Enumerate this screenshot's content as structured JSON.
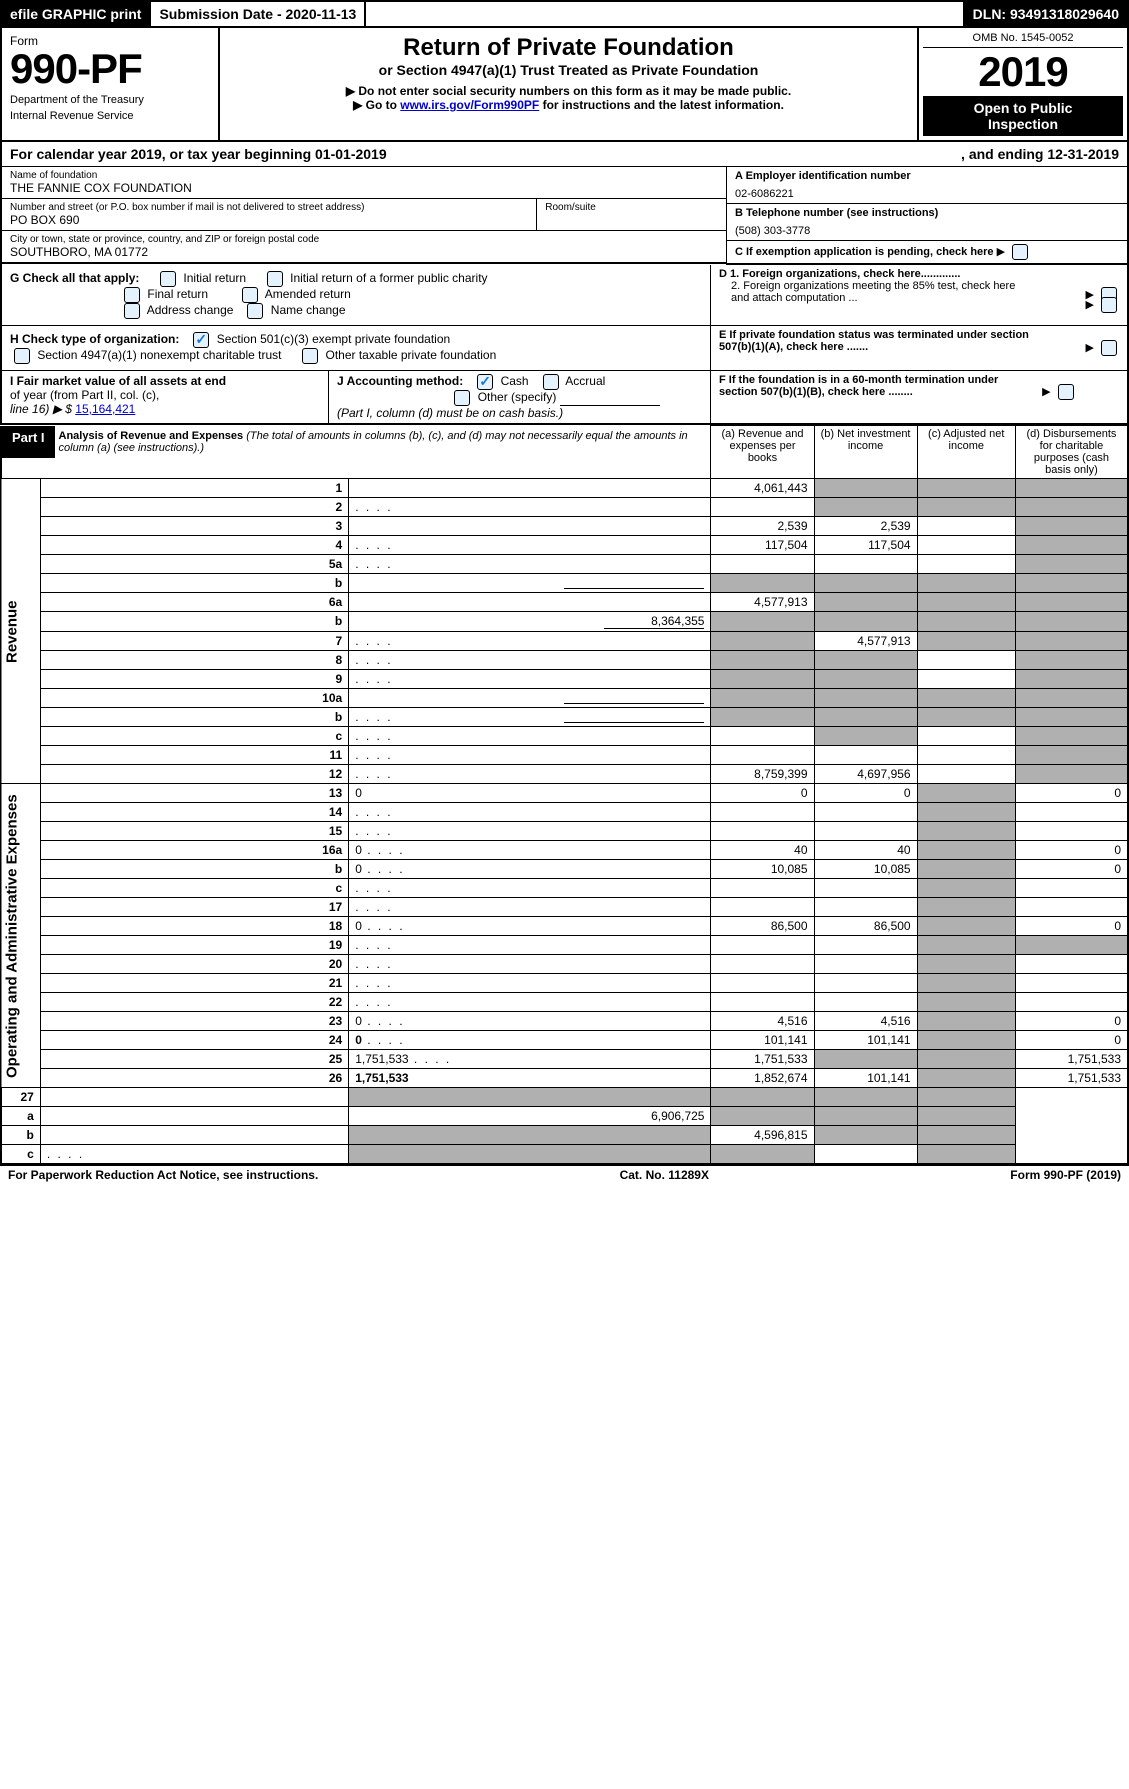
{
  "topbar": {
    "efile": "efile GRAPHIC print",
    "submission_label": "Submission Date - 2020-11-13",
    "dln": "DLN: 93491318029640"
  },
  "header": {
    "form_label": "Form",
    "form_number": "990-PF",
    "dept1": "Department of the Treasury",
    "dept2": "Internal Revenue Service",
    "title": "Return of Private Foundation",
    "subtitle": "or Section 4947(a)(1) Trust Treated as Private Foundation",
    "instr1": "▶ Do not enter social security numbers on this form as it may be made public.",
    "instr2_pre": "▶ Go to ",
    "instr2_link": "www.irs.gov/Form990PF",
    "instr2_post": " for instructions and the latest information.",
    "omb": "OMB No. 1545-0052",
    "year": "2019",
    "open1": "Open to Public",
    "open2": "Inspection"
  },
  "calyear": {
    "left": "For calendar year 2019, or tax year beginning 01-01-2019",
    "right": ", and ending 12-31-2019"
  },
  "meta": {
    "name_label": "Name of foundation",
    "name": "THE FANNIE COX FOUNDATION",
    "addr_label": "Number and street (or P.O. box number if mail is not delivered to street address)",
    "addr": "PO BOX 690",
    "room_label": "Room/suite",
    "city_label": "City or town, state or province, country, and ZIP or foreign postal code",
    "city": "SOUTHBORO, MA  01772",
    "a_label": "A Employer identification number",
    "ein": "02-6086221",
    "b_label": "B Telephone number (see instructions)",
    "phone": "(508) 303-3778",
    "c_label": "C If exemption application is pending, check here",
    "d1_label": "D 1. Foreign organizations, check here.............",
    "d2_label": "2. Foreign organizations meeting the 85% test, check here and attach computation ...",
    "e_label": "E If private foundation status was terminated under section 507(b)(1)(A), check here .......",
    "f_label": "F If the foundation is in a 60-month termination under section 507(b)(1)(B), check here ........"
  },
  "g": {
    "label": "G Check all that apply:",
    "opt1": "Initial return",
    "opt2": "Initial return of a former public charity",
    "opt3": "Final return",
    "opt4": "Amended return",
    "opt5": "Address change",
    "opt6": "Name change"
  },
  "h": {
    "label": "H Check type of organization:",
    "opt1": "Section 501(c)(3) exempt private foundation",
    "opt2": "Section 4947(a)(1) nonexempt charitable trust",
    "opt3": "Other taxable private foundation"
  },
  "i": {
    "label1": "I Fair market value of all assets at end",
    "label2": "of year (from Part II, col. (c),",
    "label3": "line 16) ▶ $",
    "value": "15,164,421"
  },
  "j": {
    "label": "J Accounting method:",
    "cash": "Cash",
    "accrual": "Accrual",
    "other": "Other (specify)",
    "note": "(Part I, column (d) must be on cash basis.)"
  },
  "part1": {
    "label": "Part I",
    "analysis_title": "Analysis of Revenue and Expenses",
    "analysis_note": "(The total of amounts in columns (b), (c), and (d) may not necessarily equal the amounts in column (a) (see instructions).)",
    "col_a": "(a)   Revenue and expenses per books",
    "col_b": "(b)  Net investment income",
    "col_c": "(c)  Adjusted net income",
    "col_d": "(d)  Disbursements for charitable purposes (cash basis only)"
  },
  "sections": {
    "revenue": "Revenue",
    "expenses": "Operating and Administrative Expenses"
  },
  "rows": [
    {
      "n": "1",
      "d": "",
      "a": "4,061,443",
      "b": "",
      "c": "",
      "b_shade": true,
      "c_shade": true,
      "d_shade": true
    },
    {
      "n": "2",
      "d": "",
      "a": "",
      "b": "",
      "c": "",
      "b_shade": true,
      "c_shade": true,
      "d_shade": true,
      "dots": true
    },
    {
      "n": "3",
      "d": "",
      "a": "2,539",
      "b": "2,539",
      "c": "",
      "d_shade": true
    },
    {
      "n": "4",
      "d": "",
      "a": "117,504",
      "b": "117,504",
      "c": "",
      "d_shade": true,
      "dots": true
    },
    {
      "n": "5a",
      "d": "",
      "a": "",
      "b": "",
      "c": "",
      "d_shade": true,
      "dots": true
    },
    {
      "n": "b",
      "d": "",
      "a": "",
      "b": "",
      "c": "",
      "a_shade": true,
      "b_shade": true,
      "c_shade": true,
      "d_shade": true,
      "inline_blank": true
    },
    {
      "n": "6a",
      "d": "",
      "a": "4,577,913",
      "b": "",
      "c": "",
      "b_shade": true,
      "c_shade": true,
      "d_shade": true
    },
    {
      "n": "b",
      "d": "",
      "a": "",
      "b": "",
      "c": "",
      "a_shade": true,
      "b_shade": true,
      "c_shade": true,
      "d_shade": true,
      "inline_val": "8,364,355"
    },
    {
      "n": "7",
      "d": "",
      "a": "",
      "b": "4,577,913",
      "c": "",
      "a_shade": true,
      "c_shade": true,
      "d_shade": true,
      "dots": true
    },
    {
      "n": "8",
      "d": "",
      "a": "",
      "b": "",
      "c": "",
      "a_shade": true,
      "b_shade": true,
      "d_shade": true,
      "dots": true
    },
    {
      "n": "9",
      "d": "",
      "a": "",
      "b": "",
      "c": "",
      "a_shade": true,
      "b_shade": true,
      "d_shade": true,
      "dots": true
    },
    {
      "n": "10a",
      "d": "",
      "a": "",
      "b": "",
      "c": "",
      "a_shade": true,
      "b_shade": true,
      "c_shade": true,
      "d_shade": true,
      "inline_blank": true
    },
    {
      "n": "b",
      "d": "",
      "a": "",
      "b": "",
      "c": "",
      "a_shade": true,
      "b_shade": true,
      "c_shade": true,
      "d_shade": true,
      "inline_blank": true,
      "dots": true
    },
    {
      "n": "c",
      "d": "",
      "a": "",
      "b": "",
      "c": "",
      "b_shade": true,
      "d_shade": true,
      "dots": true
    },
    {
      "n": "11",
      "d": "",
      "a": "",
      "b": "",
      "c": "",
      "d_shade": true,
      "dots": true
    },
    {
      "n": "12",
      "d": "",
      "a": "8,759,399",
      "b": "4,697,956",
      "c": "",
      "d_shade": true,
      "bold": true,
      "dots": true
    }
  ],
  "exp_rows": [
    {
      "n": "13",
      "d": "0",
      "a": "0",
      "b": "0",
      "c": "",
      "c_shade": true
    },
    {
      "n": "14",
      "d": "",
      "a": "",
      "b": "",
      "c": "",
      "c_shade": true,
      "dots": true
    },
    {
      "n": "15",
      "d": "",
      "a": "",
      "b": "",
      "c": "",
      "c_shade": true,
      "dots": true
    },
    {
      "n": "16a",
      "d": "0",
      "a": "40",
      "b": "40",
      "c": "",
      "c_shade": true,
      "dots": true
    },
    {
      "n": "b",
      "d": "0",
      "a": "10,085",
      "b": "10,085",
      "c": "",
      "c_shade": true,
      "dots": true
    },
    {
      "n": "c",
      "d": "",
      "a": "",
      "b": "",
      "c": "",
      "c_shade": true,
      "dots": true
    },
    {
      "n": "17",
      "d": "",
      "a": "",
      "b": "",
      "c": "",
      "c_shade": true,
      "dots": true
    },
    {
      "n": "18",
      "d": "0",
      "a": "86,500",
      "b": "86,500",
      "c": "",
      "c_shade": true,
      "dots": true
    },
    {
      "n": "19",
      "d": "",
      "a": "",
      "b": "",
      "c": "",
      "c_shade": true,
      "d_shade": true,
      "dots": true
    },
    {
      "n": "20",
      "d": "",
      "a": "",
      "b": "",
      "c": "",
      "c_shade": true,
      "dots": true
    },
    {
      "n": "21",
      "d": "",
      "a": "",
      "b": "",
      "c": "",
      "c_shade": true,
      "dots": true
    },
    {
      "n": "22",
      "d": "",
      "a": "",
      "b": "",
      "c": "",
      "c_shade": true,
      "dots": true
    },
    {
      "n": "23",
      "d": "0",
      "a": "4,516",
      "b": "4,516",
      "c": "",
      "c_shade": true,
      "dots": true
    },
    {
      "n": "24",
      "d": "0",
      "a": "101,141",
      "b": "101,141",
      "c": "",
      "c_shade": true,
      "bold": true,
      "dots": true
    },
    {
      "n": "25",
      "d": "1,751,533",
      "a": "1,751,533",
      "b": "",
      "c": "",
      "b_shade": true,
      "c_shade": true,
      "dots": true
    },
    {
      "n": "26",
      "d": "1,751,533",
      "a": "1,852,674",
      "b": "101,141",
      "c": "",
      "c_shade": true,
      "bold": true
    }
  ],
  "sub_rows": [
    {
      "n": "27",
      "d": "",
      "a": "",
      "b": "",
      "c": "",
      "a_shade": true,
      "b_shade": true,
      "c_shade": true,
      "d_shade": true
    },
    {
      "n": "a",
      "d": "",
      "a": "6,906,725",
      "b": "",
      "c": "",
      "b_shade": true,
      "c_shade": true,
      "d_shade": true,
      "bold": true
    },
    {
      "n": "b",
      "d": "",
      "a": "",
      "b": "4,596,815",
      "c": "",
      "a_shade": true,
      "c_shade": true,
      "d_shade": true,
      "bold": true
    },
    {
      "n": "c",
      "d": "",
      "a": "",
      "b": "",
      "c": "",
      "a_shade": true,
      "b_shade": true,
      "d_shade": true,
      "bold": true,
      "dots": true
    }
  ],
  "footer": {
    "left": "For Paperwork Reduction Act Notice, see instructions.",
    "mid": "Cat. No. 11289X",
    "right": "Form 990-PF (2019)"
  }
}
